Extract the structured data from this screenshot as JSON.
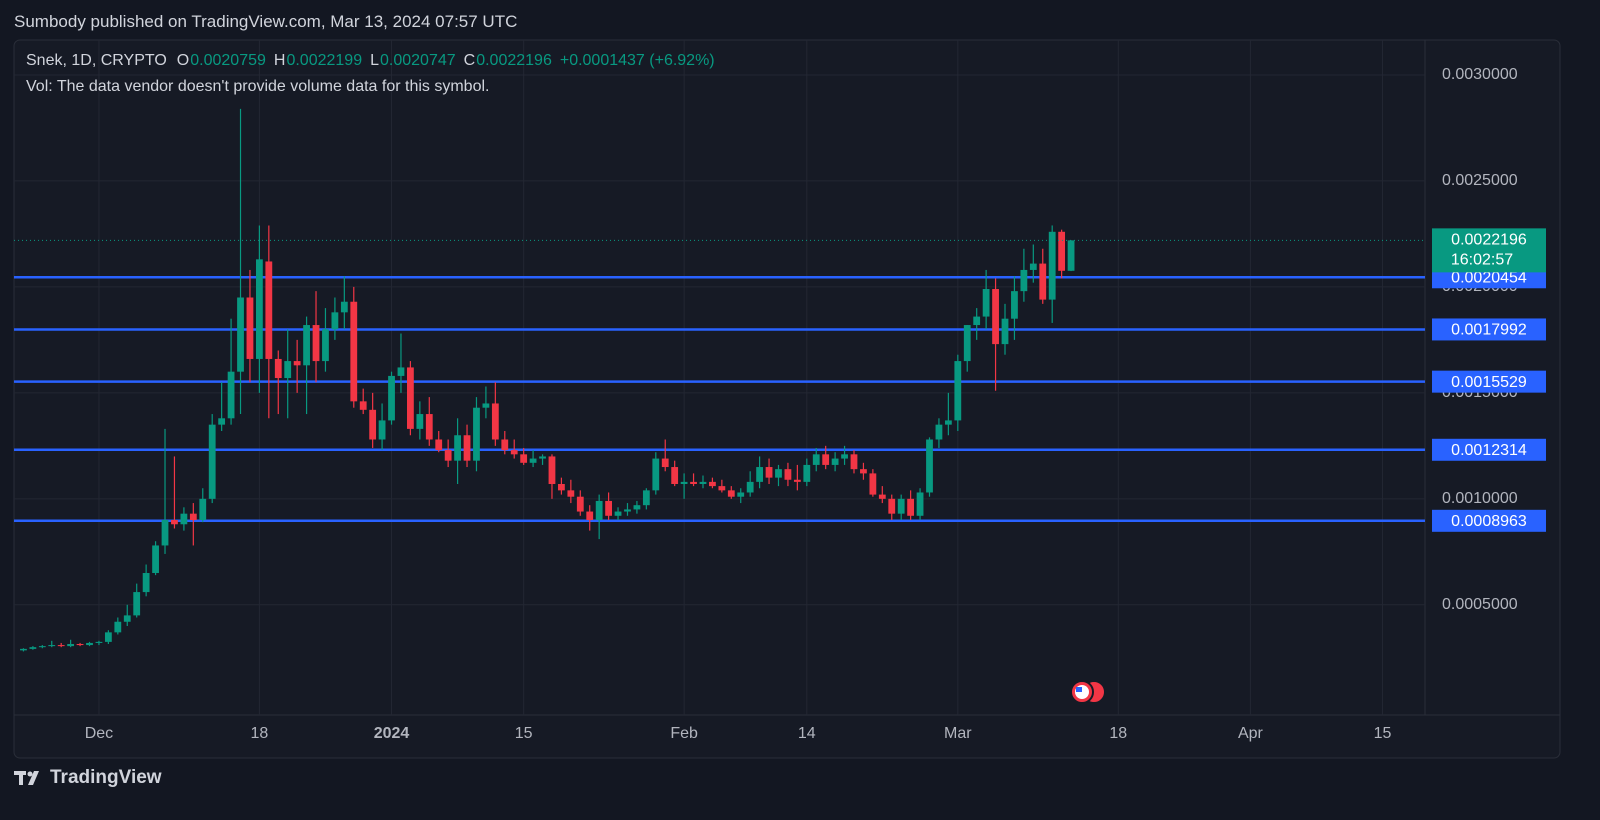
{
  "header": {
    "title": "Sumbody published on TradingView.com, Mar 13, 2024 07:57 UTC"
  },
  "chart_data": {
    "type": "candlestick",
    "symbol": "Snek, 1D, CRYPTO",
    "legend_labels": [
      "O",
      "H",
      "L",
      "C"
    ],
    "change": "+0.0001437 (+6.92%)",
    "volume_note": "Vol: The data vendor doesn't provide volume data for this symbol.",
    "countdown": "16:02:57",
    "up_color": "#089981",
    "down_color": "#f23645",
    "grid": true,
    "xlim": [
      -9,
      140.5
    ],
    "ylim": [
      -2e-05,
      0.003165
    ],
    "xticks": [
      {
        "value": 0,
        "label": "Dec"
      },
      {
        "value": 17,
        "label": "18"
      },
      {
        "value": 31,
        "label": "2024"
      },
      {
        "value": 45,
        "label": "15"
      },
      {
        "value": 62,
        "label": "Feb"
      },
      {
        "value": 75,
        "label": "14"
      },
      {
        "value": 91,
        "label": "Mar"
      },
      {
        "value": 108,
        "label": "18"
      },
      {
        "value": 122,
        "label": "Apr"
      },
      {
        "value": 136,
        "label": "15"
      }
    ],
    "yticks": [
      {
        "value": 0.0005,
        "label": "0.0005000"
      },
      {
        "value": 0.001,
        "label": "0.0010000"
      },
      {
        "value": 0.0015,
        "label": "0.0015000"
      },
      {
        "value": 0.002,
        "label": "0.0020000"
      },
      {
        "value": 0.0025,
        "label": "0.0025000"
      },
      {
        "value": 0.003,
        "label": "0.0030000"
      }
    ],
    "levels": {
      "color": "#2962ff",
      "values": [
        0.0020454,
        0.0017992,
        0.0015529,
        0.0012314,
        0.0008963
      ]
    },
    "x": [
      -8,
      -7,
      -6,
      -5,
      -4,
      -3,
      -2,
      -1,
      0,
      1,
      2,
      3,
      4,
      5,
      6,
      7,
      8,
      9,
      10,
      11,
      12,
      13,
      14,
      15,
      16,
      17,
      18,
      19,
      20,
      21,
      22,
      23,
      24,
      25,
      26,
      27,
      28,
      29,
      30,
      31,
      32,
      33,
      34,
      35,
      36,
      37,
      38,
      39,
      40,
      41,
      42,
      43,
      44,
      45,
      46,
      47,
      48,
      49,
      50,
      51,
      52,
      53,
      54,
      55,
      56,
      57,
      58,
      59,
      60,
      61,
      62,
      63,
      64,
      65,
      66,
      67,
      68,
      69,
      70,
      71,
      72,
      73,
      74,
      75,
      76,
      77,
      78,
      79,
      80,
      81,
      82,
      83,
      84,
      85,
      86,
      87,
      88,
      89,
      90,
      91,
      92,
      93,
      94,
      95,
      96,
      97,
      98,
      99,
      100,
      101,
      102,
      103
    ],
    "open": [
      0.000285,
      0.000292,
      0.0003,
      0.000305,
      0.00031,
      0.000305,
      0.000315,
      0.00031,
      0.00032,
      0.000325,
      0.00037,
      0.00042,
      0.00045,
      0.00056,
      0.00065,
      0.00078,
      0.0009,
      0.00088,
      0.00093,
      0.0009,
      0.001,
      0.00135,
      0.00138,
      0.0016,
      0.00195,
      0.00166,
      0.00212,
      0.00166,
      0.00157,
      0.00165,
      0.00163,
      0.00182,
      0.00165,
      0.0018,
      0.00188,
      0.00193,
      0.00146,
      0.00142,
      0.00128,
      0.00137,
      0.00158,
      0.00162,
      0.00133,
      0.0014,
      0.00128,
      0.00123,
      0.00118,
      0.0013,
      0.00118,
      0.00143,
      0.00145,
      0.00128,
      0.00123,
      0.00121,
      0.00117,
      0.00119,
      0.0012,
      0.00107,
      0.00104,
      0.00101,
      0.00094,
      0.0009,
      0.00099,
      0.00092,
      0.00094,
      0.00095,
      0.00097,
      0.00104,
      0.00119,
      0.00115,
      0.00107,
      0.00108,
      0.00107,
      0.00108,
      0.00106,
      0.00104,
      0.00101,
      0.00103,
      0.00108,
      0.00115,
      0.0011,
      0.00114,
      0.00109,
      0.00108,
      0.00116,
      0.00121,
      0.00116,
      0.00119,
      0.00121,
      0.00114,
      0.00112,
      0.00102,
      0.001,
      0.00093,
      0.001,
      0.00092,
      0.00103,
      0.00128,
      0.00135,
      0.00137,
      0.00165,
      0.00182,
      0.00186,
      0.00199,
      0.00173,
      0.00185,
      0.00198,
      0.00208,
      0.00211,
      0.00194,
      0.00226,
      0.0020759
    ],
    "high": [
      0.000295,
      0.000305,
      0.00031,
      0.00033,
      0.00032,
      0.000335,
      0.00032,
      0.000325,
      0.00033,
      0.00038,
      0.00044,
      0.0005,
      0.0006,
      0.00069,
      0.0008,
      0.00133,
      0.0012,
      0.00096,
      0.00098,
      0.00105,
      0.0014,
      0.00155,
      0.00185,
      0.00284,
      0.00208,
      0.00229,
      0.00229,
      0.0017,
      0.0018,
      0.00175,
      0.00186,
      0.00198,
      0.0019,
      0.00195,
      0.00205,
      0.002,
      0.00152,
      0.0015,
      0.00145,
      0.0016,
      0.00178,
      0.00165,
      0.00146,
      0.00148,
      0.00132,
      0.00128,
      0.00138,
      0.00135,
      0.00148,
      0.00153,
      0.00155,
      0.00132,
      0.00128,
      0.00124,
      0.00123,
      0.00121,
      0.00121,
      0.0011,
      0.00109,
      0.00104,
      0.00097,
      0.00102,
      0.00103,
      0.00096,
      0.00098,
      0.00099,
      0.00105,
      0.00122,
      0.00128,
      0.00118,
      0.00112,
      0.00112,
      0.00111,
      0.0011,
      0.00109,
      0.00106,
      0.00105,
      0.00113,
      0.0012,
      0.00119,
      0.00116,
      0.00117,
      0.00116,
      0.00119,
      0.00124,
      0.00125,
      0.00122,
      0.00125,
      0.00123,
      0.00117,
      0.00114,
      0.00106,
      0.00102,
      0.00102,
      0.00104,
      0.00105,
      0.00129,
      0.00138,
      0.0015,
      0.00168,
      0.00182,
      0.0019,
      0.00208,
      0.00204,
      0.00192,
      0.00205,
      0.00218,
      0.0022,
      0.00218,
      0.00229,
      0.00227,
      0.0022199
    ],
    "low": [
      0.00028,
      0.000288,
      0.000295,
      0.0003,
      0.0003,
      0.0003,
      0.000305,
      0.000305,
      0.00031,
      0.000315,
      0.00036,
      0.0004,
      0.00044,
      0.00054,
      0.00064,
      0.00074,
      0.00086,
      0.00085,
      0.00078,
      0.00089,
      0.00098,
      0.00132,
      0.00135,
      0.0014,
      0.00155,
      0.0015,
      0.00138,
      0.0014,
      0.00138,
      0.0015,
      0.0014,
      0.00155,
      0.0016,
      0.00175,
      0.0018,
      0.00143,
      0.0014,
      0.00124,
      0.00123,
      0.00135,
      0.0015,
      0.0013,
      0.00128,
      0.00125,
      0.00122,
      0.00115,
      0.00107,
      0.00115,
      0.00113,
      0.00138,
      0.00125,
      0.00121,
      0.00119,
      0.00116,
      0.00115,
      0.00116,
      0.001,
      0.00102,
      0.00098,
      0.00092,
      0.00085,
      0.00081,
      0.0009,
      0.0009,
      0.00092,
      0.00093,
      0.00095,
      0.00102,
      0.00113,
      0.00106,
      0.001,
      0.00106,
      0.00105,
      0.00105,
      0.00103,
      0.001,
      0.00098,
      0.00101,
      0.00105,
      0.00107,
      0.00106,
      0.00106,
      0.00104,
      0.00106,
      0.00113,
      0.00114,
      0.00113,
      0.00116,
      0.00112,
      0.00109,
      0.00101,
      0.00098,
      0.0009,
      0.0009,
      0.0009,
      0.0009,
      0.00101,
      0.00124,
      0.0013,
      0.00132,
      0.0016,
      0.00175,
      0.0018,
      0.00151,
      0.00168,
      0.00175,
      0.00193,
      0.00202,
      0.00192,
      0.00183,
      0.00204,
      0.0020747
    ],
    "close": [
      0.000292,
      0.0003,
      0.000305,
      0.00031,
      0.000305,
      0.000315,
      0.00031,
      0.00032,
      0.000325,
      0.00037,
      0.00042,
      0.00045,
      0.00056,
      0.00065,
      0.00078,
      0.0009,
      0.00088,
      0.00093,
      0.0009,
      0.001,
      0.00135,
      0.00138,
      0.0016,
      0.00195,
      0.00166,
      0.00213,
      0.00166,
      0.00157,
      0.00165,
      0.00163,
      0.00182,
      0.00165,
      0.0018,
      0.00188,
      0.00193,
      0.00146,
      0.00142,
      0.00128,
      0.00137,
      0.00158,
      0.00162,
      0.00133,
      0.0014,
      0.00128,
      0.00123,
      0.00118,
      0.0013,
      0.00118,
      0.00143,
      0.00145,
      0.00128,
      0.00123,
      0.00121,
      0.00117,
      0.00119,
      0.0012,
      0.00107,
      0.00104,
      0.00101,
      0.00094,
      0.0009,
      0.00099,
      0.00092,
      0.00094,
      0.00095,
      0.00097,
      0.00104,
      0.00119,
      0.00115,
      0.00107,
      0.00108,
      0.00107,
      0.00108,
      0.00106,
      0.00104,
      0.00101,
      0.00103,
      0.00108,
      0.00115,
      0.0011,
      0.00114,
      0.00109,
      0.00108,
      0.00116,
      0.00121,
      0.00116,
      0.00119,
      0.00121,
      0.00114,
      0.00112,
      0.00102,
      0.001,
      0.00093,
      0.001,
      0.00092,
      0.00103,
      0.00128,
      0.00135,
      0.00137,
      0.00165,
      0.00182,
      0.00186,
      0.00199,
      0.00173,
      0.00185,
      0.00198,
      0.00208,
      0.00211,
      0.00194,
      0.00226,
      0.0020759,
      0.0022196
    ]
  },
  "footer": {
    "brand": "TradingView"
  }
}
